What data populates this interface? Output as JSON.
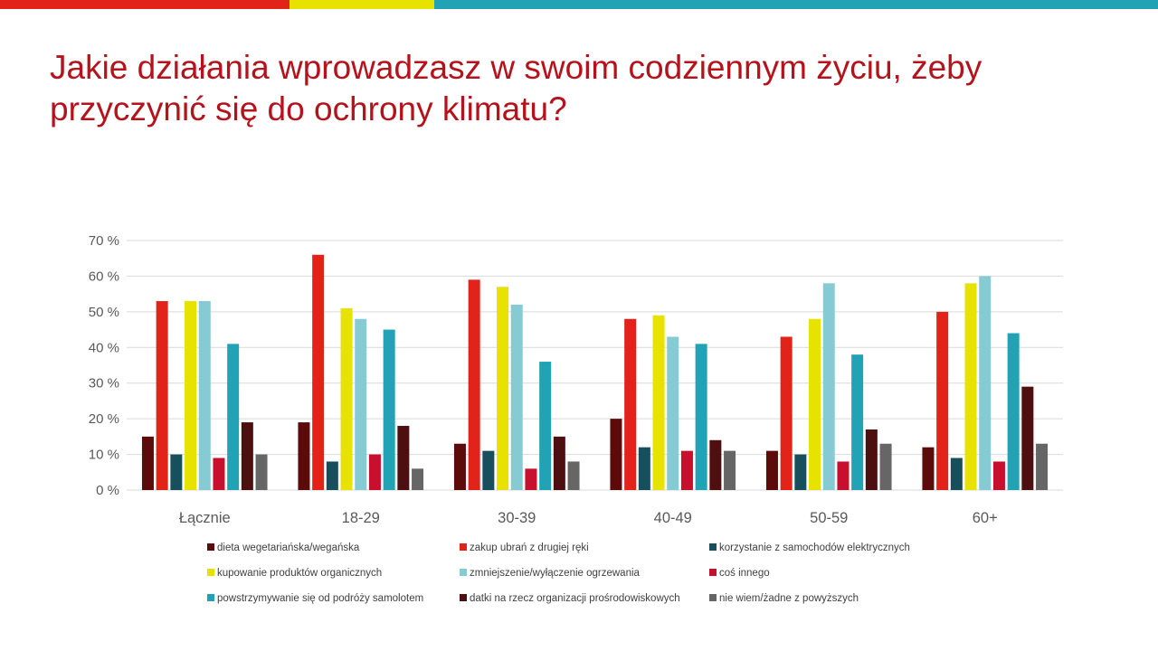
{
  "header": {
    "title_line1": "Jakie działania wprowadzasz w swoim codziennym życiu, żeby",
    "title_line2": "przyczynić się do ochrony klimatu?"
  },
  "colors": {
    "title": "#b5121b",
    "bar_red": "#e2231a",
    "bar_yellow": "#e8e200",
    "bar_teal": "#22a3b5",
    "gridline": "#d9d9d9",
    "axis_text": "#595959"
  },
  "chart_data": {
    "type": "bar",
    "title": "",
    "xlabel": "",
    "ylabel": "",
    "ylim": [
      0,
      70
    ],
    "yticks": [
      0,
      10,
      20,
      30,
      40,
      50,
      60,
      70
    ],
    "ytick_labels": [
      "0 %",
      "10 %",
      "20 %",
      "30 %",
      "40 %",
      "50 %",
      "60 %",
      "70 %"
    ],
    "grid": true,
    "legend_position": "bottom",
    "categories": [
      "Łącznie",
      "18-29",
      "30-39",
      "40-49",
      "50-59",
      "60+"
    ],
    "series": [
      {
        "name": "dieta wegetariańska/wegańska",
        "color": "#5c0a0a",
        "values": [
          15,
          19,
          13,
          20,
          11,
          12
        ]
      },
      {
        "name": "zakup ubrań z drugiej ręki",
        "color": "#e2231a",
        "values": [
          53,
          66,
          59,
          48,
          43,
          50
        ]
      },
      {
        "name": "korzystanie z samochodów elektrycznych",
        "color": "#17505c",
        "values": [
          10,
          8,
          11,
          12,
          10,
          9
        ]
      },
      {
        "name": "kupowanie produktów organicznych",
        "color": "#e8e200",
        "values": [
          53,
          51,
          57,
          49,
          48,
          58
        ]
      },
      {
        "name": "zmniejszenie/wyłączenie ogrzewania",
        "color": "#86cbd3",
        "values": [
          53,
          48,
          52,
          43,
          58,
          60
        ]
      },
      {
        "name": "coś innego",
        "color": "#c8102e",
        "values": [
          9,
          10,
          6,
          11,
          8,
          8
        ]
      },
      {
        "name": "powstrzymywanie się od podróży samolotem",
        "color": "#22a3b5",
        "values": [
          41,
          45,
          36,
          41,
          38,
          44
        ]
      },
      {
        "name": "datki na rzecz organizacji prośrodowiskowych",
        "color": "#4d0f0f",
        "values": [
          19,
          18,
          15,
          14,
          17,
          29
        ]
      },
      {
        "name": "nie wiem/żadne z powyższych",
        "color": "#666666",
        "values": [
          10,
          6,
          8,
          11,
          13,
          13
        ]
      }
    ]
  }
}
